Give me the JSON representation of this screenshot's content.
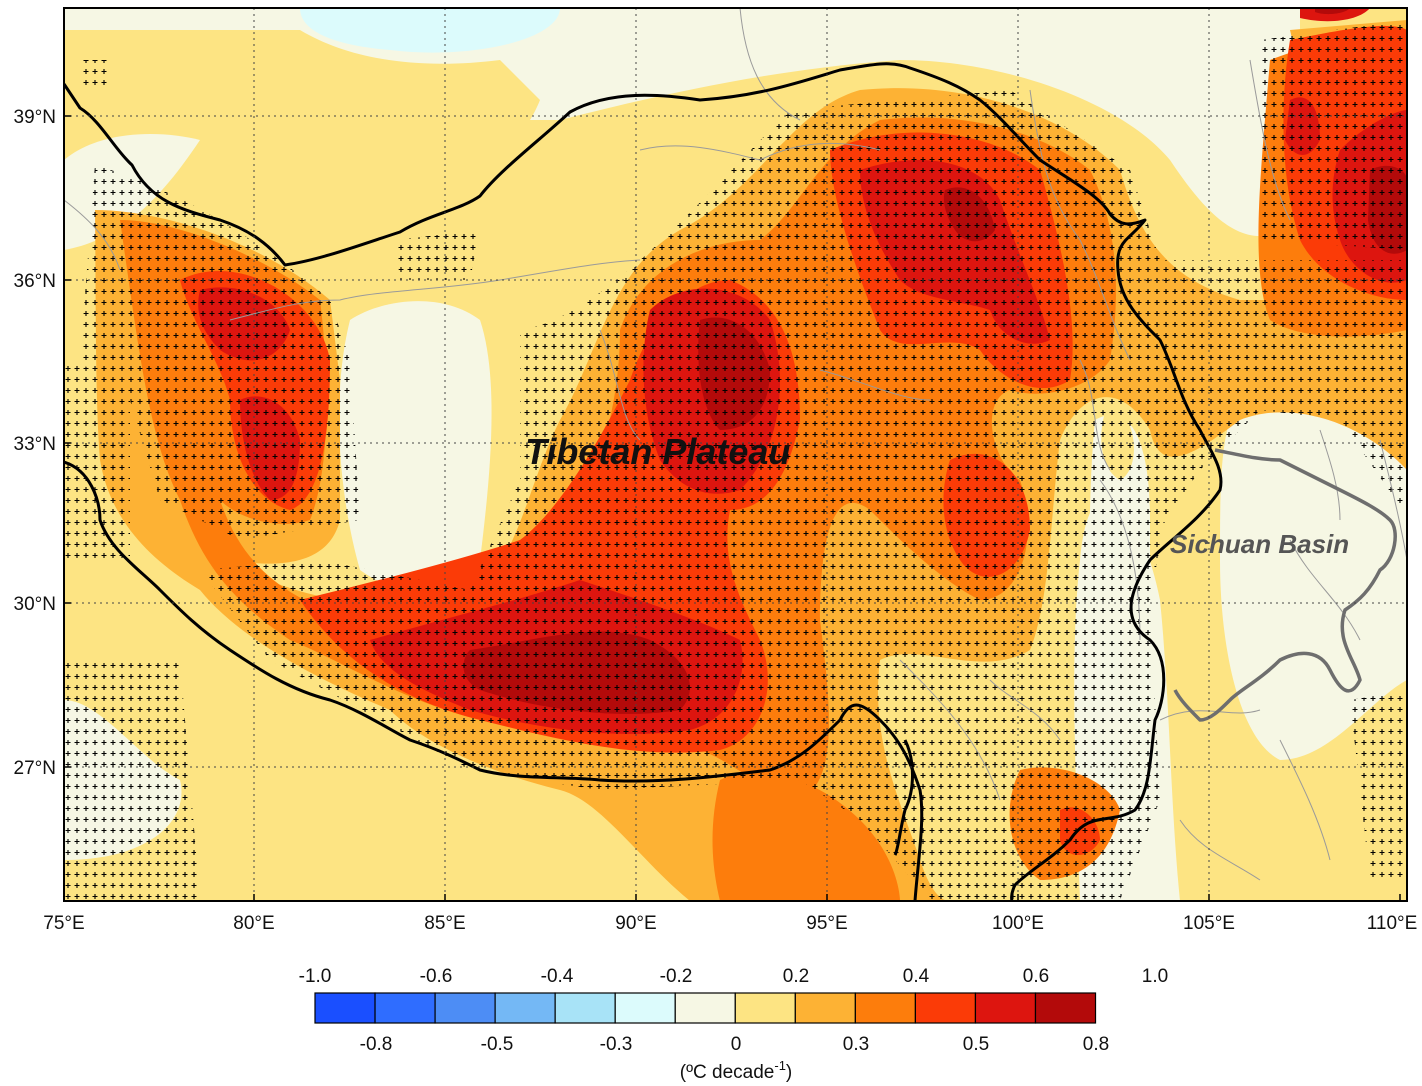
{
  "map": {
    "labels": {
      "tibetan_plateau": "Tibetan Plateau",
      "sichuan_basin": "Sichuan Basin"
    },
    "x_ticks": [
      "75°E",
      "80°E",
      "85°E",
      "90°E",
      "95°E",
      "100°E",
      "105°E",
      "110°E"
    ],
    "y_ticks": [
      "39°N",
      "36°N",
      "33°N",
      "30°N",
      "27°N"
    ]
  },
  "colorbar": {
    "top_labels": [
      "-1.0",
      "-0.6",
      "-0.4",
      "-0.2",
      "0.2",
      "0.4",
      "0.6",
      "1.0"
    ],
    "bottom_labels": [
      "-0.8",
      "-0.5",
      "-0.3",
      "0",
      "0.3",
      "0.5",
      "0.8"
    ],
    "unit_prefix": "(ºC decade",
    "unit_sup": "-1",
    "unit_suffix": ")",
    "colors": [
      "#1a4fff",
      "#2f6dff",
      "#4d8df5",
      "#74b8f5",
      "#a8e3f7",
      "#dcfbfc",
      "#f6f7e4",
      "#fde483",
      "#fdb234",
      "#fd7d0c",
      "#fb3b07",
      "#dd150f",
      "#b30a0a"
    ]
  },
  "palette": {
    "background": "#f6f7e4",
    "light_yellow": "#fde483",
    "orange_light": "#fdb234",
    "orange": "#fd7d0c",
    "red_orange": "#fb3b07",
    "red": "#dd150f",
    "dark_red": "#b30a0a",
    "light_blue": "#dcfbfc",
    "blue_light": "#a8e3f7"
  }
}
